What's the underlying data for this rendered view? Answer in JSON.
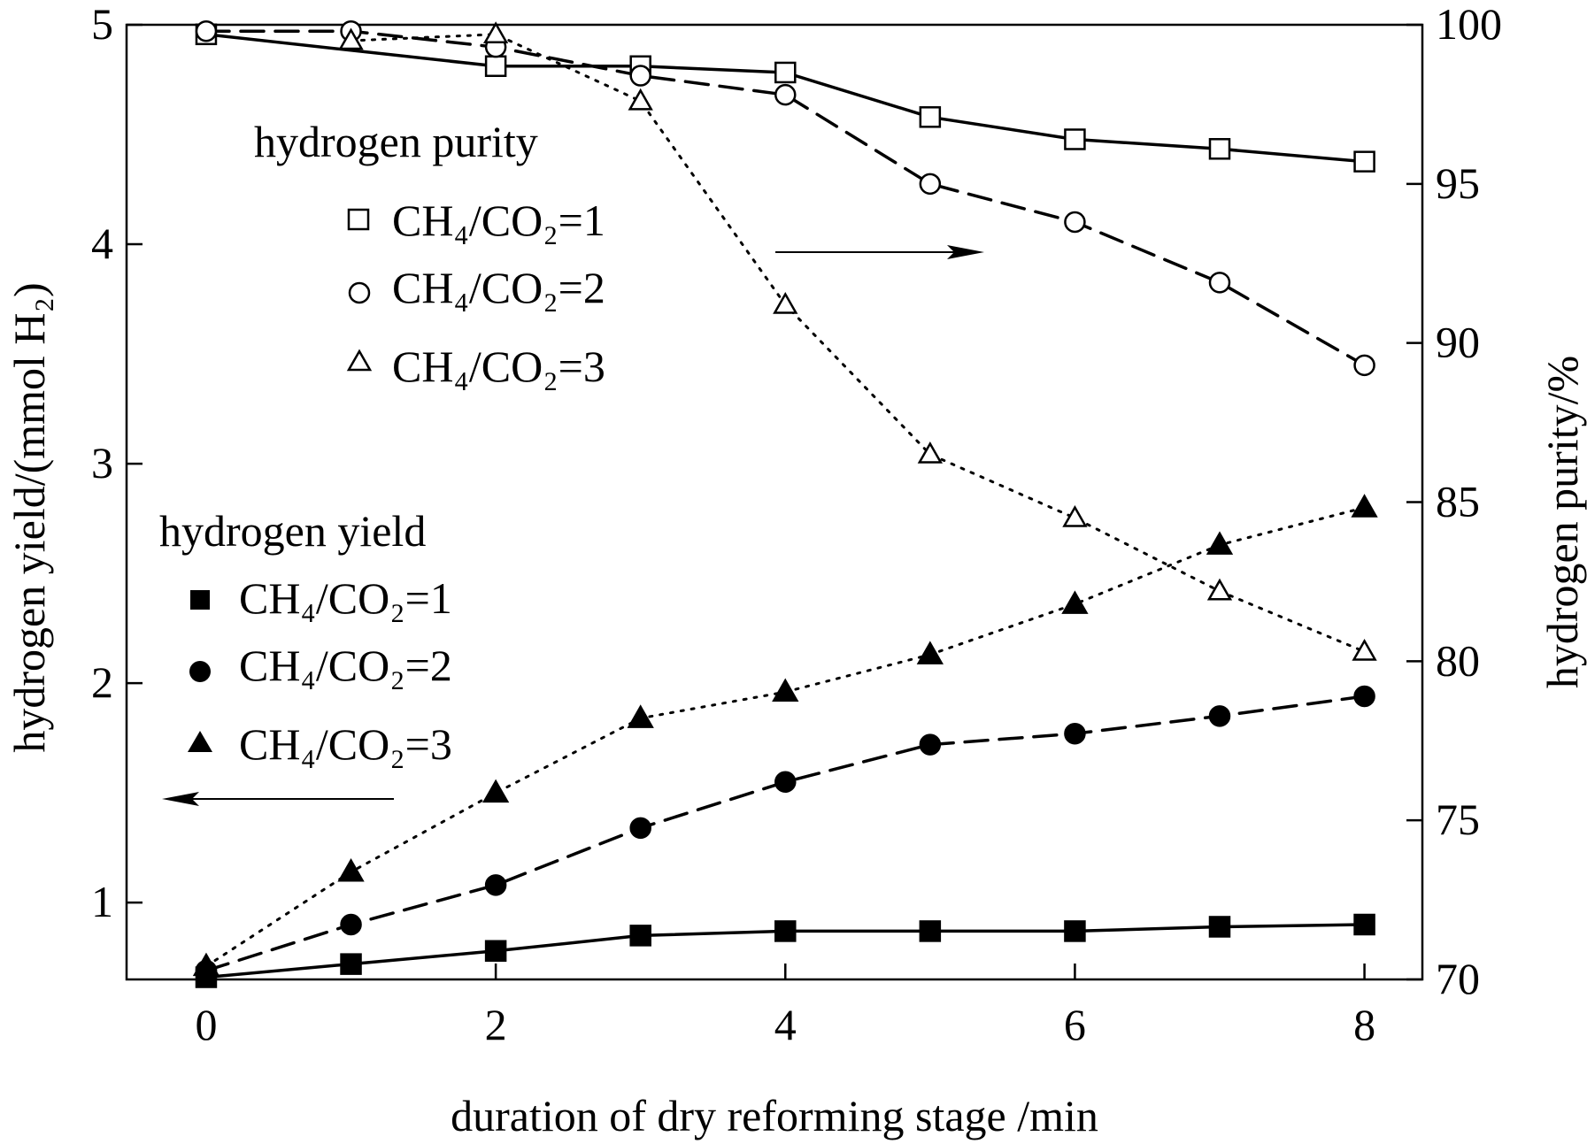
{
  "chart_data": {
    "type": "line",
    "xlabel": "duration of dry reforming stage /min",
    "ylabel_left": "hydrogen yield/(mmol H₂)",
    "ylabel_right": "hydrogen purity/%",
    "xlim": [
      -0.55,
      8.4
    ],
    "ylim_left": [
      0.65,
      5.0
    ],
    "ylim_right": [
      70,
      100
    ],
    "x_ticks": [
      "0",
      "2",
      "4",
      "6",
      "8"
    ],
    "y_left_ticks": [
      "1",
      "2",
      "3",
      "4",
      "5"
    ],
    "y_right_ticks": [
      "70",
      "75",
      "80",
      "85",
      "90",
      "95",
      "100"
    ],
    "grid": false,
    "legend_groups": [
      {
        "heading": "hydrogen purity",
        "axis": "right",
        "entries": [
          "CH₄/CO₂=1",
          "CH₄/CO₂=2",
          "CH₄/CO₂=3"
        ]
      },
      {
        "heading": "hydrogen yield",
        "axis": "left",
        "entries": [
          "CH₄/CO₂=1",
          "CH₄/CO₂=2",
          "CH₄/CO₂=3"
        ]
      }
    ],
    "x": [
      0,
      1,
      2,
      3,
      4,
      5,
      6,
      7,
      8
    ],
    "series": [
      {
        "group": "hydrogen purity",
        "axis": "right",
        "name": "CH₄/CO₂=1",
        "marker": "square",
        "filled": false,
        "dash": "solid",
        "values": [
          99.7,
          null,
          98.7,
          98.7,
          98.5,
          97.1,
          96.4,
          96.1,
          95.7
        ]
      },
      {
        "group": "hydrogen purity",
        "axis": "right",
        "name": "CH₄/CO₂=2",
        "marker": "circle",
        "filled": false,
        "dash": "dashed",
        "values": [
          99.8,
          99.8,
          99.3,
          98.4,
          97.8,
          95.0,
          93.8,
          91.9,
          89.3
        ]
      },
      {
        "group": "hydrogen purity",
        "axis": "right",
        "name": "CH₄/CO₂=3",
        "marker": "triangle",
        "filled": false,
        "dash": "dotted",
        "values": [
          null,
          99.5,
          99.7,
          97.6,
          91.2,
          86.5,
          84.5,
          82.2,
          80.3
        ]
      },
      {
        "group": "hydrogen yield",
        "axis": "left",
        "name": "CH₄/CO₂=1",
        "marker": "square",
        "filled": true,
        "dash": "solid",
        "values": [
          0.66,
          0.72,
          0.78,
          0.85,
          0.87,
          0.87,
          0.87,
          0.89,
          0.9
        ]
      },
      {
        "group": "hydrogen yield",
        "axis": "left",
        "name": "CH₄/CO₂=2",
        "marker": "circle",
        "filled": true,
        "dash": "dashed",
        "values": [
          0.69,
          0.9,
          1.08,
          1.34,
          1.55,
          1.72,
          1.77,
          1.85,
          1.94
        ]
      },
      {
        "group": "hydrogen yield",
        "axis": "left",
        "name": "CH₄/CO₂=3",
        "marker": "triangle",
        "filled": true,
        "dash": "dotted",
        "values": [
          0.71,
          1.14,
          1.5,
          1.84,
          1.96,
          2.13,
          2.36,
          2.63,
          2.8
        ]
      }
    ],
    "annotations": [
      {
        "type": "arrow",
        "direction": "right",
        "meaning": "purity curves refer to right axis"
      },
      {
        "type": "arrow",
        "direction": "left",
        "meaning": "yield curves refer to left axis"
      }
    ]
  }
}
